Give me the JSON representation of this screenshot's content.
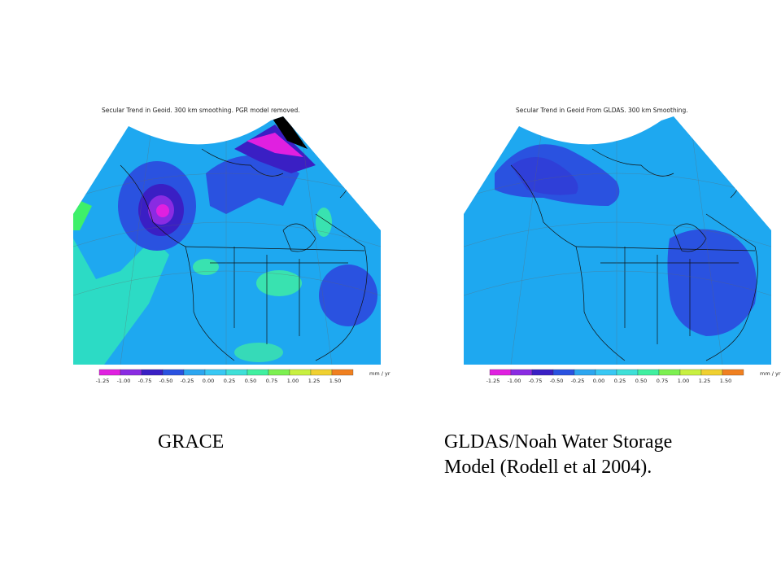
{
  "maps": [
    {
      "id": "grace",
      "title": "Secular Trend in Geoid. 300 km smoothing. PGR model removed.",
      "caption": "GRACE"
    },
    {
      "id": "gldas",
      "title": "Secular Trend in Geoid From GLDAS. 300 km Smoothing.",
      "caption_line1": "GLDAS/Noah Water Storage",
      "caption_line2": "Model (Rodell et al 2004)."
    }
  ],
  "colorbar": {
    "unit": "mm / yr",
    "ticks": [
      "-1.25",
      "-1.00",
      "-0.75",
      "-0.50",
      "-0.25",
      "0.00",
      "0.25",
      "0.50",
      "0.75",
      "1.00",
      "1.25",
      "1.50"
    ],
    "colors": [
      "#e020e0",
      "#8a2be2",
      "#3a1fc4",
      "#2a52e0",
      "#2ca6f0",
      "#38c8f4",
      "#3ee0d8",
      "#40f0a0",
      "#7cf050",
      "#c8f040",
      "#f0d030",
      "#f08020"
    ]
  }
}
